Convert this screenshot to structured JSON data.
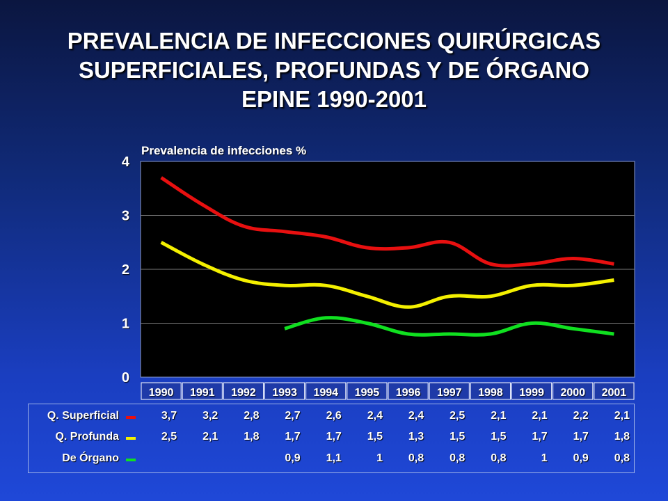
{
  "title_lines": [
    "PREVALENCIA DE INFECCIONES QUIRÚRGICAS",
    "SUPERFICIALES, PROFUNDAS Y DE ÓRGANO",
    "EPINE 1990-2001"
  ],
  "chart_data": {
    "type": "line",
    "ylabel": "Prevalencia de infecciones %",
    "ylim": [
      0,
      4
    ],
    "yticks": [
      "0",
      "1",
      "2",
      "3",
      "4"
    ],
    "grid": true,
    "categories": [
      "1990",
      "1991",
      "1992",
      "1993",
      "1994",
      "1995",
      "1996",
      "1997",
      "1998",
      "1999",
      "2000",
      "2001"
    ],
    "series": [
      {
        "name": "Q. Superficial",
        "color": "#e81010",
        "values": [
          3.7,
          3.2,
          2.8,
          2.7,
          2.6,
          2.4,
          2.4,
          2.5,
          2.1,
          2.1,
          2.2,
          2.1
        ],
        "labels": [
          "3,7",
          "3,2",
          "2,8",
          "2,7",
          "2,6",
          "2,4",
          "2,4",
          "2,5",
          "2,1",
          "2,1",
          "2,2",
          "2,1"
        ]
      },
      {
        "name": "Q. Profunda",
        "color": "#f4f000",
        "values": [
          2.5,
          2.1,
          1.8,
          1.7,
          1.7,
          1.5,
          1.3,
          1.5,
          1.5,
          1.7,
          1.7,
          1.8
        ],
        "labels": [
          "2,5",
          "2,1",
          "1,8",
          "1,7",
          "1,7",
          "1,5",
          "1,3",
          "1,5",
          "1,5",
          "1,7",
          "1,7",
          "1,8"
        ]
      },
      {
        "name": "De Órgano",
        "color": "#10e020",
        "values": [
          null,
          null,
          null,
          0.9,
          1.1,
          1.0,
          0.8,
          0.8,
          0.8,
          1.0,
          0.9,
          0.8
        ],
        "labels": [
          "",
          "",
          "",
          "0,9",
          "1,1",
          "1",
          "0,8",
          "0,8",
          "0,8",
          "1",
          "0,9",
          "0,8"
        ]
      }
    ]
  }
}
